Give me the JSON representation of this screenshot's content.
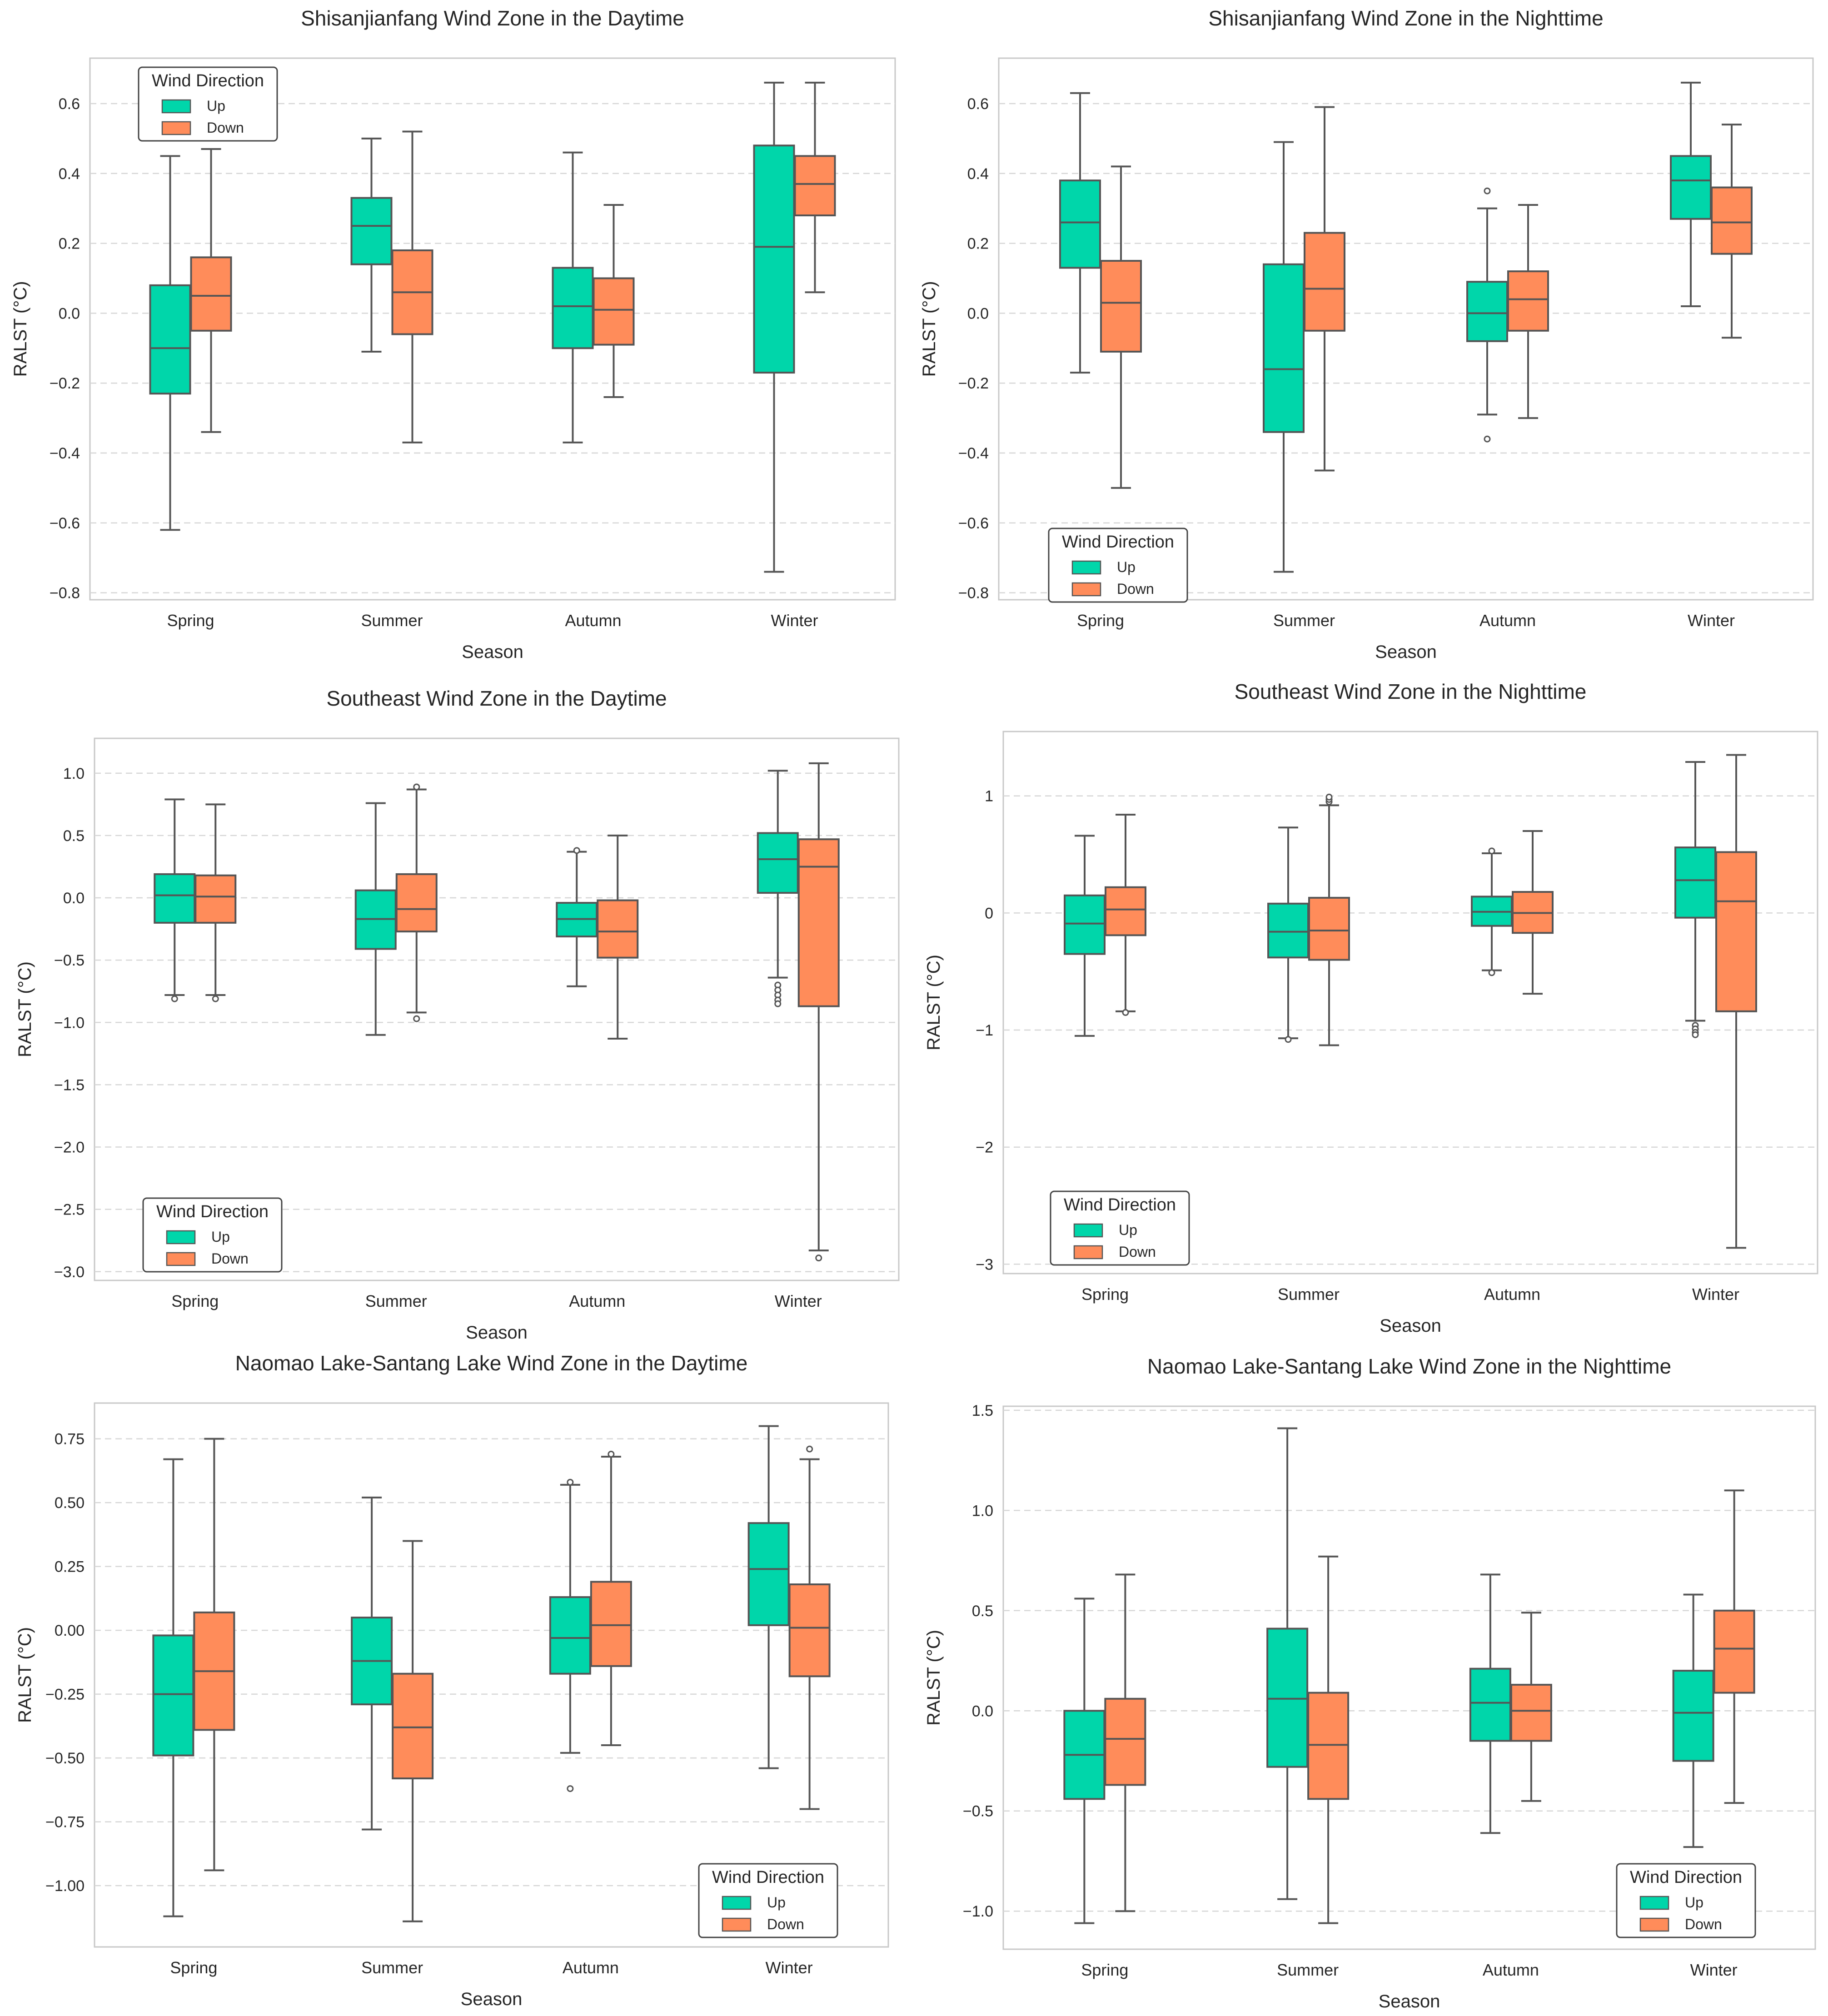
{
  "chart_data": [
    {
      "type": "box",
      "title": "Shisanjianfang Wind Zone in the Daytime",
      "xlabel": "Season",
      "ylabel": "RALST (°C)",
      "categories": [
        "Spring",
        "Summer",
        "Autumn",
        "Winter"
      ],
      "ylim": [
        -0.82,
        0.73
      ],
      "yticks": [
        -0.8,
        -0.6,
        -0.4,
        -0.2,
        0.0,
        0.2,
        0.4,
        0.6
      ],
      "ytick_labels": [
        "−0.8",
        "−0.6",
        "−0.4",
        "−0.2",
        "0.0",
        "0.2",
        "0.4",
        "0.6"
      ],
      "grid": true,
      "legend": {
        "title": "Wind Direction",
        "position": "upper-left",
        "entries": [
          "Up",
          "Down"
        ]
      },
      "series": [
        {
          "name": "Up",
          "boxes": [
            {
              "whislo": -0.62,
              "q1": -0.23,
              "med": -0.1,
              "q3": 0.08,
              "whishi": 0.45,
              "fliers": []
            },
            {
              "whislo": -0.11,
              "q1": 0.14,
              "med": 0.25,
              "q3": 0.33,
              "whishi": 0.5,
              "fliers": []
            },
            {
              "whislo": -0.37,
              "q1": -0.1,
              "med": 0.02,
              "q3": 0.13,
              "whishi": 0.46,
              "fliers": []
            },
            {
              "whislo": -0.74,
              "q1": -0.17,
              "med": 0.19,
              "q3": 0.48,
              "whishi": 0.66,
              "fliers": []
            }
          ]
        },
        {
          "name": "Down",
          "boxes": [
            {
              "whislo": -0.34,
              "q1": -0.05,
              "med": 0.05,
              "q3": 0.16,
              "whishi": 0.47,
              "fliers": []
            },
            {
              "whislo": -0.37,
              "q1": -0.06,
              "med": 0.06,
              "q3": 0.18,
              "whishi": 0.52,
              "fliers": []
            },
            {
              "whislo": -0.24,
              "q1": -0.09,
              "med": 0.01,
              "q3": 0.1,
              "whishi": 0.31,
              "fliers": []
            },
            {
              "whislo": 0.06,
              "q1": 0.28,
              "med": 0.37,
              "q3": 0.45,
              "whishi": 0.66,
              "fliers": []
            }
          ]
        }
      ]
    },
    {
      "type": "box",
      "title": "Shisanjianfang Wind Zone in the Nighttime",
      "xlabel": "Season",
      "ylabel": "RALST (°C)",
      "categories": [
        "Spring",
        "Summer",
        "Autumn",
        "Winter"
      ],
      "ylim": [
        -0.82,
        0.73
      ],
      "yticks": [
        -0.8,
        -0.6,
        -0.4,
        -0.2,
        0.0,
        0.2,
        0.4,
        0.6
      ],
      "ytick_labels": [
        "−0.8",
        "−0.6",
        "−0.4",
        "−0.2",
        "0.0",
        "0.2",
        "0.4",
        "0.6"
      ],
      "grid": true,
      "legend": {
        "title": "Wind Direction",
        "position": "lower-left",
        "entries": [
          "Up",
          "Down"
        ]
      },
      "series": [
        {
          "name": "Up",
          "boxes": [
            {
              "whislo": -0.17,
              "q1": 0.13,
              "med": 0.26,
              "q3": 0.38,
              "whishi": 0.63,
              "fliers": []
            },
            {
              "whislo": -0.74,
              "q1": -0.34,
              "med": -0.16,
              "q3": 0.14,
              "whishi": 0.49,
              "fliers": []
            },
            {
              "whislo": -0.29,
              "q1": -0.08,
              "med": 0.0,
              "q3": 0.09,
              "whishi": 0.3,
              "fliers": [
                0.35,
                -0.36
              ]
            },
            {
              "whislo": 0.02,
              "q1": 0.27,
              "med": 0.38,
              "q3": 0.45,
              "whishi": 0.66,
              "fliers": []
            }
          ]
        },
        {
          "name": "Down",
          "boxes": [
            {
              "whislo": -0.5,
              "q1": -0.11,
              "med": 0.03,
              "q3": 0.15,
              "whishi": 0.42,
              "fliers": []
            },
            {
              "whislo": -0.45,
              "q1": -0.05,
              "med": 0.07,
              "q3": 0.23,
              "whishi": 0.59,
              "fliers": []
            },
            {
              "whislo": -0.3,
              "q1": -0.05,
              "med": 0.04,
              "q3": 0.12,
              "whishi": 0.31,
              "fliers": []
            },
            {
              "whislo": -0.07,
              "q1": 0.17,
              "med": 0.26,
              "q3": 0.36,
              "whishi": 0.54,
              "fliers": []
            }
          ]
        }
      ]
    },
    {
      "type": "box",
      "title": "Southeast Wind Zone in the Daytime",
      "xlabel": "Season",
      "ylabel": "RALST (°C)",
      "categories": [
        "Spring",
        "Summer",
        "Autumn",
        "Winter"
      ],
      "ylim": [
        -3.07,
        1.28
      ],
      "yticks": [
        -3.0,
        -2.5,
        -2.0,
        -1.5,
        -1.0,
        -0.5,
        0.0,
        0.5,
        1.0
      ],
      "ytick_labels": [
        "−3.0",
        "−2.5",
        "−2.0",
        "−1.5",
        "−1.0",
        "−0.5",
        "0.0",
        "0.5",
        "1.0"
      ],
      "grid": true,
      "legend": {
        "title": "Wind Direction",
        "position": "lower-left",
        "entries": [
          "Up",
          "Down"
        ]
      },
      "series": [
        {
          "name": "Up",
          "boxes": [
            {
              "whislo": -0.78,
              "q1": -0.2,
              "med": 0.02,
              "q3": 0.19,
              "whishi": 0.79,
              "fliers": [
                -0.81
              ]
            },
            {
              "whislo": -1.1,
              "q1": -0.41,
              "med": -0.17,
              "q3": 0.06,
              "whishi": 0.76,
              "fliers": []
            },
            {
              "whislo": -0.71,
              "q1": -0.31,
              "med": -0.17,
              "q3": -0.04,
              "whishi": 0.37,
              "fliers": [
                0.38
              ]
            },
            {
              "whislo": -0.64,
              "q1": 0.04,
              "med": 0.31,
              "q3": 0.52,
              "whishi": 1.02,
              "fliers": [
                -0.7,
                -0.74,
                -0.78,
                -0.82,
                -0.85
              ]
            }
          ]
        },
        {
          "name": "Down",
          "boxes": [
            {
              "whislo": -0.78,
              "q1": -0.2,
              "med": 0.01,
              "q3": 0.18,
              "whishi": 0.75,
              "fliers": [
                -0.81
              ]
            },
            {
              "whislo": -0.92,
              "q1": -0.27,
              "med": -0.09,
              "q3": 0.19,
              "whishi": 0.87,
              "fliers": [
                0.89,
                -0.97
              ]
            },
            {
              "whislo": -1.13,
              "q1": -0.48,
              "med": -0.27,
              "q3": -0.02,
              "whishi": 0.5,
              "fliers": []
            },
            {
              "whislo": -2.83,
              "q1": -0.87,
              "med": 0.25,
              "q3": 0.47,
              "whishi": 1.08,
              "fliers": [
                -2.89
              ]
            }
          ]
        }
      ]
    },
    {
      "type": "box",
      "title": "Southeast Wind Zone in the Nighttime",
      "xlabel": "Season",
      "ylabel": "RALST (°C)",
      "categories": [
        "Spring",
        "Summer",
        "Autumn",
        "Winter"
      ],
      "ylim": [
        -3.08,
        1.55
      ],
      "yticks": [
        -3,
        -2,
        -1,
        0,
        1
      ],
      "ytick_labels": [
        "−3",
        "−2",
        "−1",
        "0",
        "1"
      ],
      "grid": true,
      "legend": {
        "title": "Wind Direction",
        "position": "lower-left",
        "entries": [
          "Up",
          "Down"
        ]
      },
      "series": [
        {
          "name": "Up",
          "boxes": [
            {
              "whislo": -1.05,
              "q1": -0.35,
              "med": -0.09,
              "q3": 0.15,
              "whishi": 0.66,
              "fliers": []
            },
            {
              "whislo": -1.07,
              "q1": -0.38,
              "med": -0.16,
              "q3": 0.08,
              "whishi": 0.73,
              "fliers": [
                -1.08
              ]
            },
            {
              "whislo": -0.49,
              "q1": -0.11,
              "med": 0.01,
              "q3": 0.14,
              "whishi": 0.51,
              "fliers": [
                0.53,
                -0.51
              ]
            },
            {
              "whislo": -0.92,
              "q1": -0.04,
              "med": 0.28,
              "q3": 0.56,
              "whishi": 1.29,
              "fliers": [
                -0.96,
                -0.99,
                -1.02,
                -1.04
              ]
            }
          ]
        },
        {
          "name": "Down",
          "boxes": [
            {
              "whislo": -0.84,
              "q1": -0.19,
              "med": 0.03,
              "q3": 0.22,
              "whishi": 0.84,
              "fliers": [
                -0.85
              ]
            },
            {
              "whislo": -1.13,
              "q1": -0.4,
              "med": -0.15,
              "q3": 0.13,
              "whishi": 0.92,
              "fliers": [
                0.95,
                0.97,
                0.99
              ]
            },
            {
              "whislo": -0.69,
              "q1": -0.17,
              "med": 0.0,
              "q3": 0.18,
              "whishi": 0.7,
              "fliers": []
            },
            {
              "whislo": -2.86,
              "q1": -0.84,
              "med": 0.1,
              "q3": 0.52,
              "whishi": 1.35,
              "fliers": []
            }
          ]
        }
      ]
    },
    {
      "type": "box",
      "title": "Naomao Lake-Santang Lake Wind Zone in the Daytime",
      "xlabel": "Season",
      "ylabel": "RALST (°C)",
      "categories": [
        "Spring",
        "Summer",
        "Autumn",
        "Winter"
      ],
      "ylim": [
        -1.24,
        0.89
      ],
      "yticks": [
        -1.0,
        -0.75,
        -0.5,
        -0.25,
        0.0,
        0.25,
        0.5,
        0.75
      ],
      "ytick_labels": [
        "−1.00",
        "−0.75",
        "−0.50",
        "−0.25",
        "0.00",
        "0.25",
        "0.50",
        "0.75"
      ],
      "grid": true,
      "legend": {
        "title": "Wind Direction",
        "position": "lower-right",
        "entries": [
          "Up",
          "Down"
        ]
      },
      "series": [
        {
          "name": "Up",
          "boxes": [
            {
              "whislo": -1.12,
              "q1": -0.49,
              "med": -0.25,
              "q3": -0.02,
              "whishi": 0.67,
              "fliers": []
            },
            {
              "whislo": -0.78,
              "q1": -0.29,
              "med": -0.12,
              "q3": 0.05,
              "whishi": 0.52,
              "fliers": []
            },
            {
              "whislo": -0.48,
              "q1": -0.17,
              "med": -0.03,
              "q3": 0.13,
              "whishi": 0.57,
              "fliers": [
                0.58,
                -0.62
              ]
            },
            {
              "whislo": -0.54,
              "q1": 0.02,
              "med": 0.24,
              "q3": 0.42,
              "whishi": 0.8,
              "fliers": []
            }
          ]
        },
        {
          "name": "Down",
          "boxes": [
            {
              "whislo": -0.94,
              "q1": -0.39,
              "med": -0.16,
              "q3": 0.07,
              "whishi": 0.75,
              "fliers": []
            },
            {
              "whislo": -1.14,
              "q1": -0.58,
              "med": -0.38,
              "q3": -0.17,
              "whishi": 0.35,
              "fliers": []
            },
            {
              "whislo": -0.45,
              "q1": -0.14,
              "med": 0.02,
              "q3": 0.19,
              "whishi": 0.68,
              "fliers": [
                0.69
              ]
            },
            {
              "whislo": -0.7,
              "q1": -0.18,
              "med": 0.01,
              "q3": 0.18,
              "whishi": 0.67,
              "fliers": [
                0.71
              ]
            }
          ]
        }
      ]
    },
    {
      "type": "box",
      "title": "Naomao Lake-Santang Lake Wind Zone in the Nighttime",
      "xlabel": "Season",
      "ylabel": "RALST (°C)",
      "categories": [
        "Spring",
        "Summer",
        "Autumn",
        "Winter"
      ],
      "ylim": [
        -1.19,
        1.52
      ],
      "yticks": [
        -1.0,
        -0.5,
        0.0,
        0.5,
        1.0,
        1.5
      ],
      "ytick_labels": [
        "−1.0",
        "−0.5",
        "0.0",
        "0.5",
        "1.0",
        "1.5"
      ],
      "grid": true,
      "legend": {
        "title": "Wind Direction",
        "position": "lower-right",
        "entries": [
          "Up",
          "Down"
        ]
      },
      "series": [
        {
          "name": "Up",
          "boxes": [
            {
              "whislo": -1.06,
              "q1": -0.44,
              "med": -0.22,
              "q3": 0.0,
              "whishi": 0.56,
              "fliers": []
            },
            {
              "whislo": -0.94,
              "q1": -0.28,
              "med": 0.06,
              "q3": 0.41,
              "whishi": 1.41,
              "fliers": []
            },
            {
              "whislo": -0.61,
              "q1": -0.15,
              "med": 0.04,
              "q3": 0.21,
              "whishi": 0.68,
              "fliers": []
            },
            {
              "whislo": -0.68,
              "q1": -0.25,
              "med": -0.01,
              "q3": 0.2,
              "whishi": 0.58,
              "fliers": []
            }
          ]
        },
        {
          "name": "Down",
          "boxes": [
            {
              "whislo": -1.0,
              "q1": -0.37,
              "med": -0.14,
              "q3": 0.06,
              "whishi": 0.68,
              "fliers": []
            },
            {
              "whislo": -1.06,
              "q1": -0.44,
              "med": -0.17,
              "q3": 0.09,
              "whishi": 0.77,
              "fliers": []
            },
            {
              "whislo": -0.45,
              "q1": -0.15,
              "med": 0.0,
              "q3": 0.13,
              "whishi": 0.49,
              "fliers": []
            },
            {
              "whislo": -0.46,
              "q1": 0.09,
              "med": 0.31,
              "q3": 0.5,
              "whishi": 1.1,
              "fliers": []
            }
          ]
        }
      ]
    }
  ],
  "colors": {
    "Up": "#00d6aa",
    "Down": "#ff8c5a",
    "line": "#555555",
    "grid": "#d6d6d6",
    "frame": "#c8c8c8",
    "text": "#262626"
  }
}
